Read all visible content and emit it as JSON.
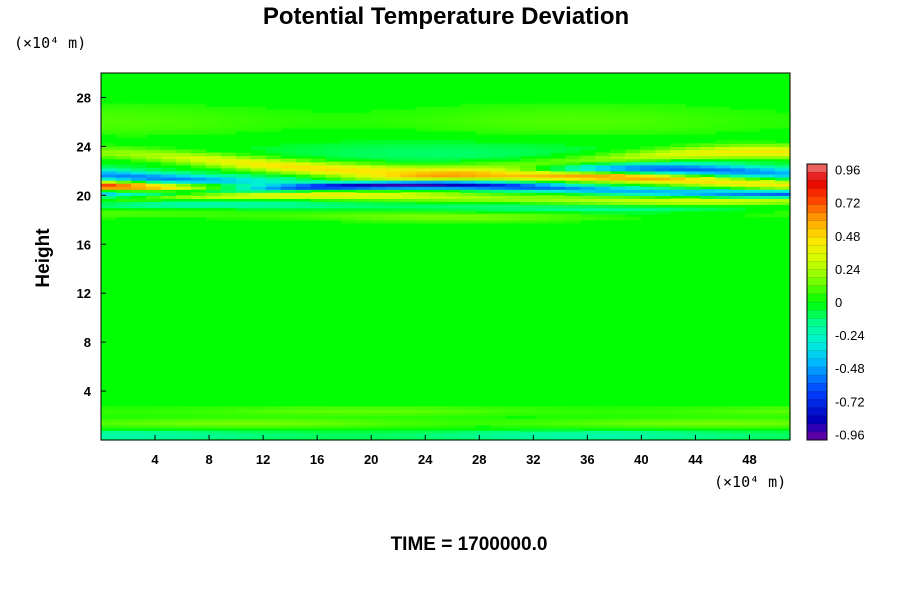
{
  "chart_data": {
    "type": "heatmap",
    "title": "Potential Temperature Deviation",
    "ylabel": "Height",
    "xlabel": "",
    "x_unit": "(×10⁴ m)",
    "y_unit": "(×10⁴ m)",
    "xlim": [
      0,
      51
    ],
    "ylim": [
      0,
      30
    ],
    "x_ticks": [
      "4",
      "8",
      "12",
      "16",
      "20",
      "24",
      "28",
      "32",
      "36",
      "40",
      "44",
      "48"
    ],
    "x_tick_values": [
      4,
      8,
      12,
      16,
      20,
      24,
      28,
      32,
      36,
      40,
      44,
      48
    ],
    "y_ticks": [
      "4",
      "8",
      "12",
      "16",
      "20",
      "24",
      "28"
    ],
    "y_tick_values": [
      4,
      8,
      12,
      16,
      20,
      24,
      28
    ],
    "colorbar": {
      "min": -1.0,
      "max": 1.0,
      "tick_labels": [
        "0.96",
        "0.72",
        "0.48",
        "0.24",
        "0",
        "-0.24",
        "-0.48",
        "-0.72",
        "-0.96"
      ],
      "tick_values": [
        0.96,
        0.72,
        0.48,
        0.24,
        0,
        -0.24,
        -0.48,
        -0.72,
        -0.96
      ]
    },
    "bands": [
      {
        "y": 26.0,
        "amp": 0.1,
        "sigma": 1.2
      },
      {
        "y": 23.5,
        "amp": -0.12,
        "sigma": 0.9
      },
      {
        "y": 22.8,
        "amp": 0.5,
        "sigma": 0.4,
        "drift": 0.8
      },
      {
        "y": 21.6,
        "amp": -0.6,
        "sigma": 0.35,
        "drift": 0.6
      },
      {
        "y": 21.2,
        "amp": 0.85,
        "sigma": 0.3,
        "drift": 0.5
      },
      {
        "y": 20.5,
        "amp": -0.9,
        "sigma": 0.25,
        "drift": 0.4
      },
      {
        "y": 19.8,
        "amp": 0.45,
        "sigma": 0.3,
        "drift": 0.3
      },
      {
        "y": 19.1,
        "amp": -0.3,
        "sigma": 0.35,
        "drift": 0.2
      },
      {
        "y": 18.6,
        "amp": 0.2,
        "sigma": 0.4,
        "drift": 0.2
      },
      {
        "y": 2.4,
        "amp": 0.12,
        "sigma": 0.3
      },
      {
        "y": 1.4,
        "amp": 0.15,
        "sigma": 0.3
      },
      {
        "y": 0.4,
        "amp": -0.22,
        "sigma": 0.3
      }
    ]
  },
  "footer": {
    "time_label": "TIME = 1700000.0"
  },
  "colors": {
    "background": "#00ff00",
    "axis": "#000000"
  }
}
